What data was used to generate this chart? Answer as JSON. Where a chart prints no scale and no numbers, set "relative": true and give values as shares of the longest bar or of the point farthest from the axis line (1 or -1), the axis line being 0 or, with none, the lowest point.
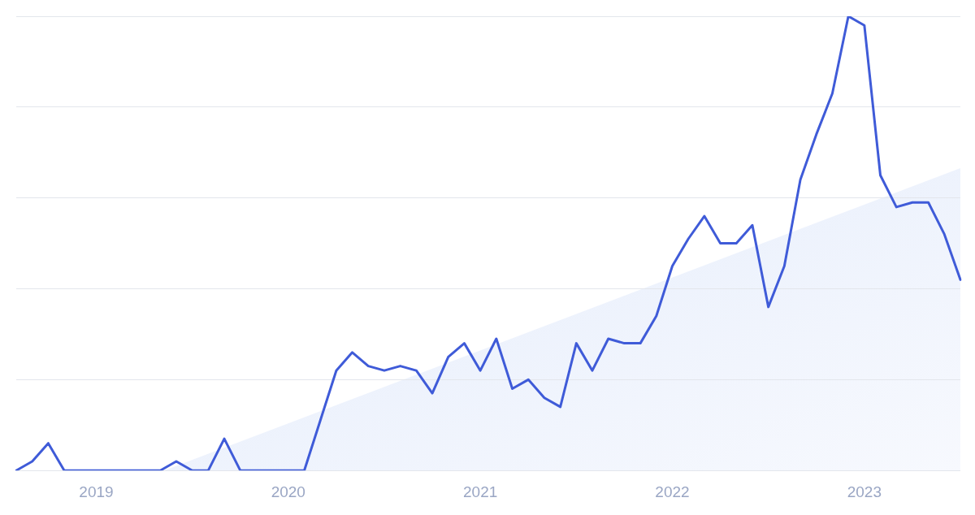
{
  "chart_data": {
    "type": "line",
    "relative": true,
    "grid": "y",
    "legend": false,
    "marker": "none",
    "line_style": "solid",
    "categories": [
      null,
      null,
      null,
      null,
      null,
      "2019",
      null,
      null,
      null,
      null,
      null,
      null,
      null,
      null,
      null,
      null,
      null,
      "2020",
      null,
      null,
      null,
      null,
      null,
      null,
      null,
      null,
      null,
      null,
      null,
      "2021",
      null,
      null,
      null,
      null,
      null,
      null,
      null,
      null,
      null,
      null,
      null,
      "2022",
      null,
      null,
      null,
      null,
      null,
      null,
      null,
      null,
      null,
      null,
      null,
      "2023",
      null,
      null,
      null,
      null,
      null,
      null
    ],
    "series": [
      {
        "color": "#3f5bd8",
        "values": [
          0,
          0.02,
          0.06,
          0,
          0,
          0,
          0,
          0,
          0,
          0,
          0.02,
          0,
          0,
          0.07,
          0,
          0,
          0,
          0,
          0,
          0.11,
          0.22,
          0.26,
          0.23,
          0.22,
          0.23,
          0.22,
          0.17,
          0.25,
          0.28,
          0.22,
          0.29,
          0.18,
          0.2,
          0.16,
          0.14,
          0.28,
          0.22,
          0.29,
          0.28,
          0.28,
          0.34,
          0.45,
          0.51,
          0.56,
          0.5,
          0.5,
          0.54,
          0.36,
          0.45,
          0.64,
          0.74,
          0.83,
          1,
          0.98,
          0.65,
          0.58,
          0.59,
          0.59,
          0.52,
          0.42
        ]
      }
    ]
  }
}
